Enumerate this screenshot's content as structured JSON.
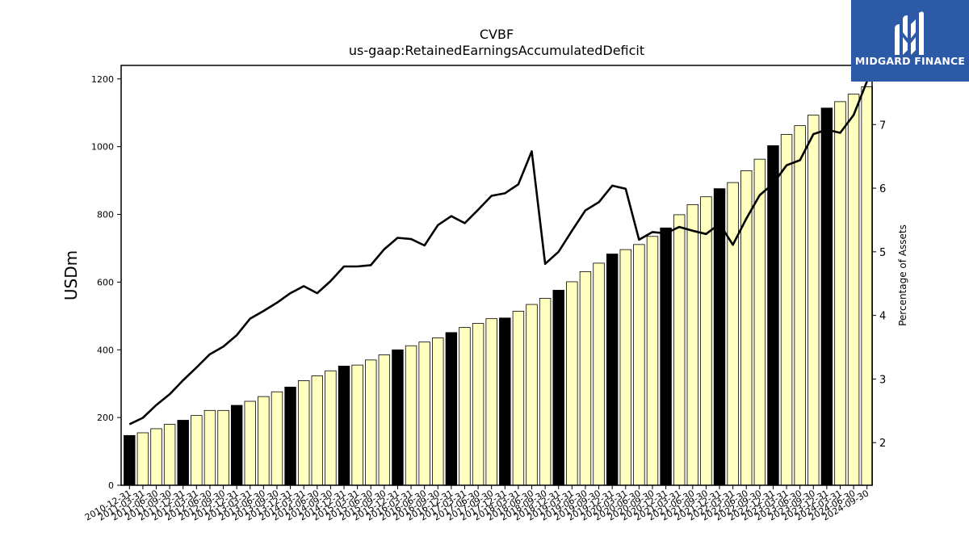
{
  "chart_data": {
    "type": "bar",
    "title": "CVBF",
    "subtitle": "us-gaap:RetainedEarningsAccumulatedDeficit",
    "ylabel": "USDm",
    "y2label": "Percentage of Assets",
    "ylim": [
      0,
      1240
    ],
    "y2lim": [
      1.33,
      7.93
    ],
    "yticks": [
      0,
      200,
      400,
      600,
      800,
      1000,
      1200
    ],
    "y2ticks": [
      2,
      3,
      4,
      5,
      6,
      7
    ],
    "grid": false,
    "categories": [
      "2010-12-31",
      "2011-03-31",
      "2011-06-30",
      "2011-09-30",
      "2011-12-31",
      "2012-03-31",
      "2012-06-30",
      "2012-09-30",
      "2012-12-31",
      "2013-03-31",
      "2013-06-30",
      "2013-09-30",
      "2013-12-31",
      "2014-03-31",
      "2014-06-30",
      "2014-09-30",
      "2014-12-31",
      "2015-03-31",
      "2015-06-30",
      "2015-09-30",
      "2015-12-31",
      "2016-03-31",
      "2016-06-30",
      "2016-09-30",
      "2016-12-31",
      "2017-03-31",
      "2017-06-30",
      "2017-09-30",
      "2017-12-31",
      "2018-03-31",
      "2018-06-30",
      "2018-09-30",
      "2018-12-31",
      "2019-03-31",
      "2019-06-30",
      "2019-09-30",
      "2019-12-31",
      "2020-03-31",
      "2020-06-30",
      "2020-09-30",
      "2020-12-31",
      "2021-03-31",
      "2021-06-30",
      "2021-09-30",
      "2021-12-31",
      "2022-03-31",
      "2022-06-30",
      "2022-09-30",
      "2022-12-31",
      "2023-03-31",
      "2023-06-30",
      "2023-09-30",
      "2023-12-31",
      "2024-03-31",
      "2024-06-30",
      "2024-09-30"
    ],
    "series": [
      {
        "kind": "bar",
        "values": [
          147,
          155,
          167,
          180,
          192,
          206,
          221,
          221,
          236,
          248,
          262,
          276,
          290,
          309,
          323,
          338,
          352,
          355,
          370,
          385,
          400,
          412,
          423,
          435,
          451,
          466,
          478,
          492,
          494,
          514,
          534,
          552,
          576,
          601,
          631,
          656,
          683,
          696,
          711,
          735,
          760,
          799,
          829,
          852,
          876,
          894,
          929,
          963,
          1003,
          1036,
          1062,
          1093,
          1114,
          1133,
          1155,
          1177
        ],
        "colors": {
          "annual": "#000000",
          "quarter": "#ffffc0",
          "edge": "#000000"
        }
      },
      {
        "kind": "line",
        "axis": "right",
        "color": "#000000",
        "values": [
          2.29,
          2.39,
          2.59,
          2.76,
          2.98,
          3.18,
          3.39,
          3.51,
          3.69,
          3.95,
          4.07,
          4.2,
          4.35,
          4.46,
          4.35,
          4.54,
          4.77,
          4.77,
          4.79,
          5.04,
          5.22,
          5.2,
          5.1,
          5.42,
          5.56,
          5.45,
          5.66,
          5.88,
          5.92,
          6.06,
          6.58,
          4.81,
          5.0,
          5.33,
          5.65,
          5.78,
          6.04,
          5.99,
          5.19,
          5.31,
          5.29,
          5.39,
          5.33,
          5.28,
          5.44,
          5.11,
          5.52,
          5.89,
          6.07,
          6.36,
          6.44,
          6.85,
          6.92,
          6.87,
          7.15,
          7.68
        ]
      }
    ]
  },
  "logo": {
    "text": "MIDGARD FINANCE"
  }
}
